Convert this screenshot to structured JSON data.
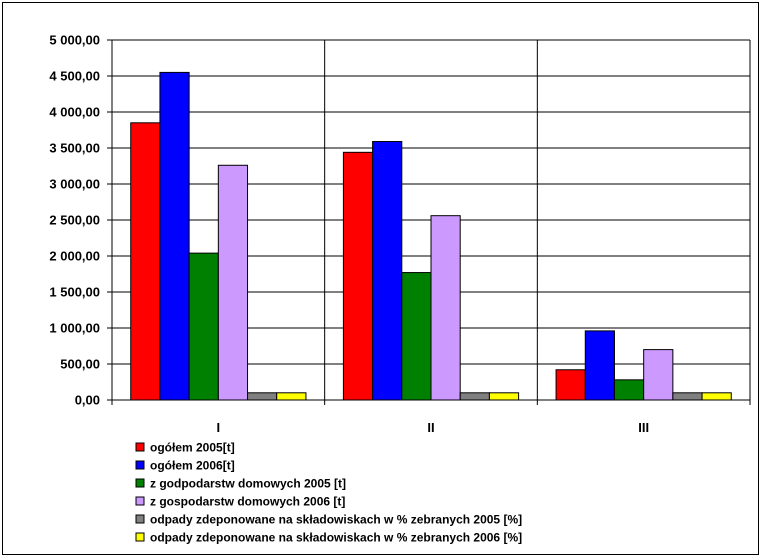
{
  "chart_data": {
    "type": "bar",
    "categories": [
      "I",
      "II",
      "III"
    ],
    "ylim": [
      0,
      5000
    ],
    "yticks": [
      "0,00",
      "500,00",
      "1 000,00",
      "1 500,00",
      "2 000,00",
      "2 500,00",
      "3 000,00",
      "3 500,00",
      "4 000,00",
      "4 500,00",
      "5 000,00"
    ],
    "grid": true,
    "legend_position": "bottom",
    "series": [
      {
        "name": "ogółem 2005[t]",
        "color": "#ff0000",
        "values": [
          3850,
          3440,
          420
        ]
      },
      {
        "name": "ogółem 2006[t]",
        "color": "#0000ff",
        "values": [
          4550,
          3590,
          960
        ]
      },
      {
        "name": "z godpodarstw domowych 2005 [t]",
        "color": "#008000",
        "values": [
          2040,
          1770,
          280
        ]
      },
      {
        "name": "z gospodarstw domowych 2006 [t]",
        "color": "#cc99ff",
        "values": [
          3260,
          2560,
          700
        ]
      },
      {
        "name": "odpady zdeponowane na składowiskach w % zebranych 2005 [%]",
        "color": "#808080",
        "values": [
          100,
          100,
          100
        ]
      },
      {
        "name": "odpady zdeponowane na składowiskach w % zebranych 2006 [%]",
        "color": "#ffff00",
        "values": [
          100,
          100,
          100
        ]
      }
    ]
  }
}
